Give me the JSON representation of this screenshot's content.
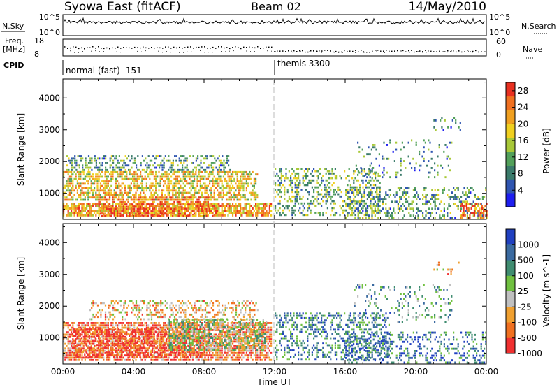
{
  "header": {
    "station": "Syowa East (fitACF)",
    "beam": "Beam 02",
    "date": "14/May/2010"
  },
  "status_panels": {
    "nsky_label": "N.Sky",
    "nsky_ticks": [
      "10^5",
      "10^0"
    ],
    "nsearch_label": "N.Search",
    "freq_label_line1": "Freq.",
    "freq_label_line2": "[MHz]",
    "freq_ticks": [
      "18",
      "8"
    ],
    "nave_label": "Nave",
    "nave_ticks": [
      "60",
      "0"
    ],
    "right_ticks": [
      "10^5",
      "10^0"
    ],
    "cpid_label": "CPID",
    "cpid_segments": [
      {
        "label": "normal (fast) -151",
        "start_hour": 0
      },
      {
        "label": "themis 3300",
        "start_hour": 12
      }
    ]
  },
  "chart_data": [
    {
      "type": "heatmap",
      "title": "",
      "xlabel": "",
      "ylabel": "Slant Range [km]",
      "x_ticks": [
        "00:00",
        "04:00",
        "08:00",
        "12:00",
        "16:00",
        "20:00",
        "00:00"
      ],
      "xlim_hours": [
        0,
        24
      ],
      "y_ticks": [
        1000,
        2000,
        3000,
        4000
      ],
      "ylim": [
        180,
        4600
      ],
      "colorbar": {
        "label": "Power [dB]",
        "ticks": [
          4,
          8,
          12,
          16,
          20,
          24,
          28
        ],
        "range": [
          0,
          30
        ],
        "colors": [
          "#1e1ef0",
          "#2f55b0",
          "#3a7a6a",
          "#52a05a",
          "#a8c838",
          "#f0d020",
          "#f0a020",
          "#f07020",
          "#e83020"
        ]
      },
      "features": [
        {
          "t0": 0.0,
          "t1": 11.8,
          "r0": 300,
          "r1": 700,
          "level": 0.72,
          "density": 0.75
        },
        {
          "t0": 0.0,
          "t1": 11.0,
          "r0": 800,
          "r1": 1700,
          "level": 0.62,
          "density": 0.6
        },
        {
          "t0": 0.2,
          "t1": 9.5,
          "r0": 1700,
          "r1": 2200,
          "level": 0.35,
          "density": 0.4
        },
        {
          "t0": 2.0,
          "t1": 8.5,
          "r0": 300,
          "r1": 900,
          "level": 0.85,
          "density": 0.55
        },
        {
          "t0": 12.0,
          "t1": 18.0,
          "r0": 300,
          "r1": 1800,
          "level": 0.4,
          "density": 0.35
        },
        {
          "t0": 16.0,
          "t1": 24.0,
          "r0": 250,
          "r1": 1200,
          "level": 0.35,
          "density": 0.3
        },
        {
          "t0": 16.5,
          "t1": 22.0,
          "r0": 1500,
          "r1": 2700,
          "level": 0.3,
          "density": 0.12
        },
        {
          "t0": 21.0,
          "t1": 22.5,
          "r0": 3000,
          "r1": 3400,
          "level": 0.25,
          "density": 0.15
        },
        {
          "t0": 22.5,
          "t1": 24.0,
          "r0": 250,
          "r1": 700,
          "level": 0.9,
          "density": 0.5
        }
      ]
    },
    {
      "type": "heatmap",
      "title": "",
      "xlabel": "Time UT",
      "ylabel": "Slant Range [km]",
      "x_ticks": [
        "00:00",
        "04:00",
        "08:00",
        "12:00",
        "16:00",
        "20:00",
        "00:00"
      ],
      "xlim_hours": [
        0,
        24
      ],
      "y_ticks": [
        1000,
        2000,
        3000,
        4000
      ],
      "ylim": [
        180,
        4600
      ],
      "colorbar": {
        "label": "Velocity [m s^-1]",
        "ticks": [
          1000,
          500,
          100,
          25,
          -25,
          -100,
          -500,
          -1000
        ],
        "colors": [
          "#2040c0",
          "#3a6aa0",
          "#3f8c70",
          "#70c040",
          "#c0c0c0",
          "#f0a030",
          "#f07020",
          "#f03030"
        ]
      },
      "features": [
        {
          "t0": 0.0,
          "t1": 11.8,
          "r0": 300,
          "r1": 1500,
          "level": 0.8,
          "density": 0.7
        },
        {
          "t0": 0.5,
          "t1": 8.0,
          "r0": 400,
          "r1": 1300,
          "level": 0.92,
          "density": 0.5
        },
        {
          "t0": 6.0,
          "t1": 11.5,
          "r0": 600,
          "r1": 1600,
          "level": 0.5,
          "density": 0.55
        },
        {
          "t0": 1.5,
          "t1": 11.0,
          "r0": 1600,
          "r1": 2200,
          "level": 0.65,
          "density": 0.35
        },
        {
          "t0": 12.0,
          "t1": 18.5,
          "r0": 300,
          "r1": 1800,
          "level": 0.25,
          "density": 0.35
        },
        {
          "t0": 16.0,
          "t1": 24.0,
          "r0": 250,
          "r1": 1200,
          "level": 0.2,
          "density": 0.3
        },
        {
          "t0": 16.5,
          "t1": 22.0,
          "r0": 1500,
          "r1": 2700,
          "level": 0.35,
          "density": 0.12
        },
        {
          "t0": 21.0,
          "t1": 22.5,
          "r0": 3000,
          "r1": 3400,
          "level": 0.7,
          "density": 0.15
        }
      ]
    }
  ]
}
